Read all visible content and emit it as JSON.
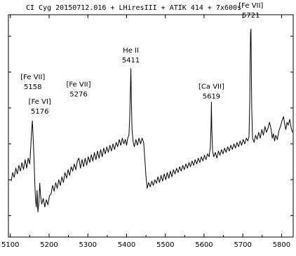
{
  "chart_data": {
    "type": "line",
    "title": "CI Cyg 20150712.016 + LHiresIII + ATIK 414 + 7x600s",
    "xlabel": "",
    "ylabel": "",
    "xlim": [
      5095,
      5830
    ],
    "ylim": [
      0.2,
      3.3
    ],
    "x_ticks": [
      5100,
      5200,
      5300,
      5400,
      5500,
      5600,
      5700,
      5800
    ],
    "x_tick_labels": [
      "5100",
      "5200",
      "5300",
      "5400",
      "5500",
      "5600",
      "5700",
      "5800"
    ],
    "y_ticks_visible": false,
    "grid": false,
    "series": [
      {
        "color": "#000000",
        "points": [
          [
            5102,
            0.98
          ],
          [
            5106,
            1.1
          ],
          [
            5110,
            1.03
          ],
          [
            5114,
            1.16
          ],
          [
            5118,
            1.08
          ],
          [
            5122,
            1.2
          ],
          [
            5126,
            1.12
          ],
          [
            5130,
            1.24
          ],
          [
            5134,
            1.14
          ],
          [
            5138,
            1.28
          ],
          [
            5142,
            1.16
          ],
          [
            5146,
            1.3
          ],
          [
            5150,
            1.22
          ],
          [
            5153,
            1.48
          ],
          [
            5155,
            1.68
          ],
          [
            5157,
            1.82
          ],
          [
            5159,
            1.55
          ],
          [
            5161,
            1.3
          ],
          [
            5163,
            0.95
          ],
          [
            5165,
            0.72
          ],
          [
            5167,
            0.62
          ],
          [
            5169,
            0.85
          ],
          [
            5171,
            0.55
          ],
          [
            5174,
            0.7
          ],
          [
            5176,
            0.95
          ],
          [
            5178,
            0.78
          ],
          [
            5181,
            0.66
          ],
          [
            5185,
            0.74
          ],
          [
            5189,
            0.62
          ],
          [
            5193,
            0.72
          ],
          [
            5197,
            0.65
          ],
          [
            5201,
            0.78
          ],
          [
            5205,
            0.8
          ],
          [
            5209,
            0.92
          ],
          [
            5213,
            0.84
          ],
          [
            5217,
            0.96
          ],
          [
            5221,
            0.88
          ],
          [
            5225,
            1.0
          ],
          [
            5229,
            0.92
          ],
          [
            5233,
            1.04
          ],
          [
            5237,
            0.96
          ],
          [
            5241,
            1.1
          ],
          [
            5245,
            1.02
          ],
          [
            5249,
            1.14
          ],
          [
            5253,
            1.06
          ],
          [
            5257,
            1.18
          ],
          [
            5261,
            1.12
          ],
          [
            5265,
            1.22
          ],
          [
            5269,
            1.14
          ],
          [
            5273,
            1.26
          ],
          [
            5277,
            1.3
          ],
          [
            5281,
            1.16
          ],
          [
            5285,
            1.28
          ],
          [
            5289,
            1.18
          ],
          [
            5293,
            1.3
          ],
          [
            5297,
            1.2
          ],
          [
            5301,
            1.32
          ],
          [
            5305,
            1.24
          ],
          [
            5309,
            1.35
          ],
          [
            5313,
            1.26
          ],
          [
            5317,
            1.38
          ],
          [
            5321,
            1.28
          ],
          [
            5325,
            1.4
          ],
          [
            5329,
            1.3
          ],
          [
            5333,
            1.42
          ],
          [
            5337,
            1.32
          ],
          [
            5341,
            1.44
          ],
          [
            5345,
            1.36
          ],
          [
            5349,
            1.46
          ],
          [
            5353,
            1.38
          ],
          [
            5357,
            1.48
          ],
          [
            5361,
            1.4
          ],
          [
            5365,
            1.5
          ],
          [
            5369,
            1.42
          ],
          [
            5373,
            1.52
          ],
          [
            5377,
            1.46
          ],
          [
            5381,
            1.56
          ],
          [
            5385,
            1.48
          ],
          [
            5389,
            1.58
          ],
          [
            5393,
            1.5
          ],
          [
            5397,
            1.56
          ],
          [
            5400,
            1.48
          ],
          [
            5403,
            1.58
          ],
          [
            5406,
            1.62
          ],
          [
            5408,
            1.85
          ],
          [
            5410,
            2.3
          ],
          [
            5411,
            2.55
          ],
          [
            5412,
            2.2
          ],
          [
            5414,
            1.7
          ],
          [
            5417,
            1.52
          ],
          [
            5420,
            1.46
          ],
          [
            5424,
            1.56
          ],
          [
            5428,
            1.48
          ],
          [
            5432,
            1.58
          ],
          [
            5436,
            1.5
          ],
          [
            5440,
            1.58
          ],
          [
            5444,
            1.52
          ],
          [
            5447,
            1.3
          ],
          [
            5450,
            1.05
          ],
          [
            5453,
            0.88
          ],
          [
            5457,
            0.96
          ],
          [
            5461,
            0.9
          ],
          [
            5465,
            0.98
          ],
          [
            5469,
            0.92
          ],
          [
            5473,
            1.0
          ],
          [
            5477,
            0.95
          ],
          [
            5481,
            1.04
          ],
          [
            5485,
            0.96
          ],
          [
            5489,
            1.06
          ],
          [
            5493,
            0.98
          ],
          [
            5497,
            1.08
          ],
          [
            5501,
            1.0
          ],
          [
            5505,
            1.1
          ],
          [
            5509,
            1.02
          ],
          [
            5513,
            1.12
          ],
          [
            5517,
            1.04
          ],
          [
            5521,
            1.14
          ],
          [
            5525,
            1.08
          ],
          [
            5529,
            1.16
          ],
          [
            5533,
            1.1
          ],
          [
            5537,
            1.18
          ],
          [
            5541,
            1.12
          ],
          [
            5545,
            1.2
          ],
          [
            5549,
            1.14
          ],
          [
            5553,
            1.22
          ],
          [
            5557,
            1.16
          ],
          [
            5561,
            1.24
          ],
          [
            5565,
            1.18
          ],
          [
            5569,
            1.26
          ],
          [
            5573,
            1.2
          ],
          [
            5577,
            1.28
          ],
          [
            5581,
            1.22
          ],
          [
            5585,
            1.3
          ],
          [
            5589,
            1.24
          ],
          [
            5593,
            1.32
          ],
          [
            5597,
            1.26
          ],
          [
            5601,
            1.34
          ],
          [
            5605,
            1.28
          ],
          [
            5609,
            1.36
          ],
          [
            5613,
            1.32
          ],
          [
            5616,
            1.45
          ],
          [
            5618,
            1.75
          ],
          [
            5619,
            2.08
          ],
          [
            5620,
            1.7
          ],
          [
            5622,
            1.4
          ],
          [
            5625,
            1.32
          ],
          [
            5629,
            1.38
          ],
          [
            5633,
            1.3
          ],
          [
            5637,
            1.4
          ],
          [
            5641,
            1.34
          ],
          [
            5645,
            1.42
          ],
          [
            5649,
            1.36
          ],
          [
            5653,
            1.44
          ],
          [
            5657,
            1.38
          ],
          [
            5661,
            1.46
          ],
          [
            5665,
            1.4
          ],
          [
            5669,
            1.48
          ],
          [
            5673,
            1.42
          ],
          [
            5677,
            1.5
          ],
          [
            5681,
            1.44
          ],
          [
            5685,
            1.52
          ],
          [
            5689,
            1.46
          ],
          [
            5693,
            1.54
          ],
          [
            5697,
            1.48
          ],
          [
            5701,
            1.56
          ],
          [
            5705,
            1.5
          ],
          [
            5709,
            1.58
          ],
          [
            5713,
            1.54
          ],
          [
            5716,
            1.6
          ],
          [
            5718,
            2.1
          ],
          [
            5719,
            2.7
          ],
          [
            5720,
            3.05
          ],
          [
            5721,
            3.1
          ],
          [
            5722,
            2.6
          ],
          [
            5723,
            2.0
          ],
          [
            5725,
            1.58
          ],
          [
            5729,
            1.52
          ],
          [
            5733,
            1.62
          ],
          [
            5737,
            1.56
          ],
          [
            5741,
            1.66
          ],
          [
            5745,
            1.58
          ],
          [
            5749,
            1.7
          ],
          [
            5753,
            1.62
          ],
          [
            5757,
            1.74
          ],
          [
            5761,
            1.66
          ],
          [
            5765,
            1.72
          ],
          [
            5769,
            1.8
          ],
          [
            5773,
            1.7
          ],
          [
            5776,
            1.58
          ],
          [
            5779,
            1.64
          ],
          [
            5782,
            1.54
          ],
          [
            5785,
            1.62
          ],
          [
            5789,
            1.56
          ],
          [
            5793,
            1.68
          ],
          [
            5797,
            1.74
          ],
          [
            5801,
            1.82
          ],
          [
            5805,
            1.88
          ],
          [
            5808,
            1.78
          ],
          [
            5811,
            1.7
          ],
          [
            5814,
            1.8
          ],
          [
            5817,
            1.76
          ],
          [
            5821,
            1.84
          ],
          [
            5825,
            1.72
          ],
          [
            5828,
            1.66
          ]
        ]
      }
    ],
    "annotations": [
      {
        "id": "fe7-5158",
        "line1": "[Fe VII]",
        "line2": "5158",
        "x": 5158,
        "y": 2.4
      },
      {
        "id": "fe6-5176",
        "line1": "[Fe VI]",
        "line2": "5176",
        "x": 5176,
        "y": 2.06
      },
      {
        "id": "fe7-5276",
        "line1": "[Fe VII]",
        "line2": "5276",
        "x": 5276,
        "y": 2.3
      },
      {
        "id": "he2-5411",
        "line1": "He II",
        "line2": "5411",
        "x": 5411,
        "y": 2.77
      },
      {
        "id": "ca7-5619",
        "line1": "[Ca VII]",
        "line2": "5619",
        "x": 5619,
        "y": 2.27
      },
      {
        "id": "fe7-5721",
        "line1": "[Fe VII]",
        "line2": "5721",
        "x": 5721,
        "y": 3.4
      }
    ]
  }
}
